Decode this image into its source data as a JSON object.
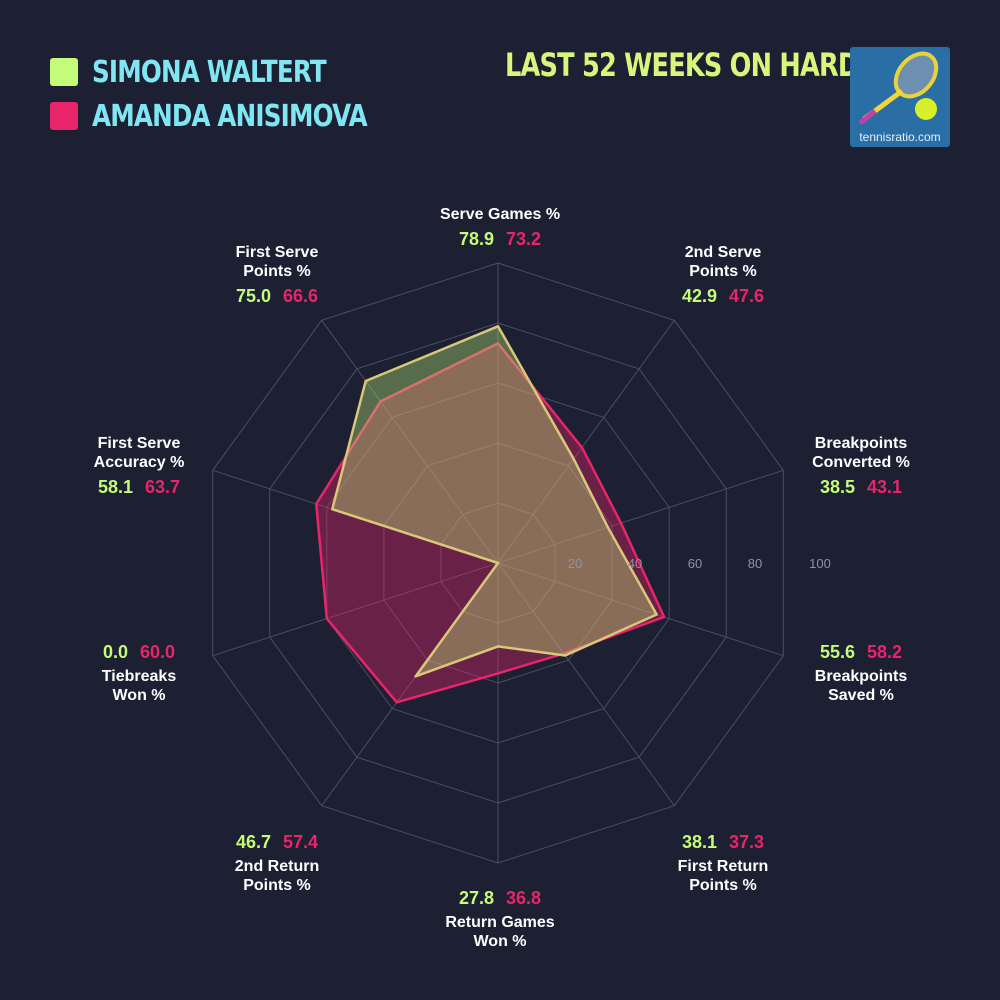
{
  "legend": [
    {
      "name": "SIMONA WALTERT",
      "color": "#c4fb78"
    },
    {
      "name": "AMANDA ANISIMOVA",
      "color": "#e8246a"
    }
  ],
  "period": "LAST 52 WEEKS ON HARD",
  "logo": {
    "text": "tennisratio.com",
    "icon": "tennis-racket-and-ball-icon"
  },
  "chart_data": {
    "type": "radar",
    "rlim": [
      0,
      100
    ],
    "rticks": [
      "20",
      "40",
      "60",
      "80",
      "100"
    ],
    "grid": true,
    "categories": [
      "Serve Games %",
      "2nd Serve\nPoints %",
      "Breakpoints\nConverted %",
      "Breakpoints\nSaved %",
      "First Return\nPoints %",
      "Return Games\nWon %",
      "2nd Return\nPoints %",
      "Tiebreaks\nWon %",
      "First Serve\nAccuracy %",
      "First Serve\nPoints %"
    ],
    "series": [
      {
        "name": "SIMONA WALTERT",
        "color": "#c4fb78",
        "values": [
          78.9,
          42.9,
          38.5,
          55.6,
          38.1,
          27.8,
          46.7,
          0.0,
          58.1,
          75.0
        ],
        "labels": [
          "78.9",
          "42.9",
          "38.5",
          "55.6",
          "38.1",
          "27.8",
          "46.7",
          "0.0",
          "58.1",
          "75.0"
        ]
      },
      {
        "name": "AMANDA ANISIMOVA",
        "color": "#e8246a",
        "values": [
          73.2,
          47.6,
          43.1,
          58.2,
          37.3,
          36.8,
          57.4,
          60.0,
          63.7,
          66.6
        ],
        "labels": [
          "73.2",
          "47.6",
          "43.1",
          "58.2",
          "37.3",
          "36.8",
          "57.4",
          "60.0",
          "63.7",
          "66.6"
        ]
      }
    ]
  }
}
